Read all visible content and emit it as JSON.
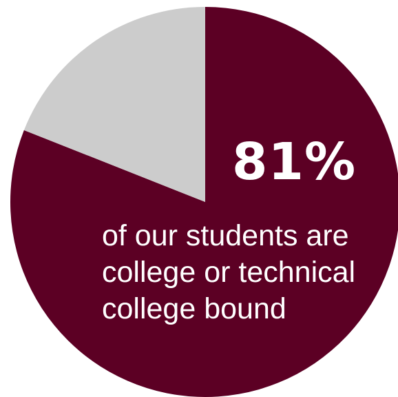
{
  "chart_data": {
    "type": "pie",
    "slices": [
      {
        "label": "",
        "value": 81,
        "color": "#5c0024"
      },
      {
        "label": "",
        "value": 19,
        "color": "#cccccc"
      }
    ],
    "highlight_value": "81%",
    "caption_lines": [
      "of our students are",
      "college or technical",
      "college bound"
    ]
  }
}
